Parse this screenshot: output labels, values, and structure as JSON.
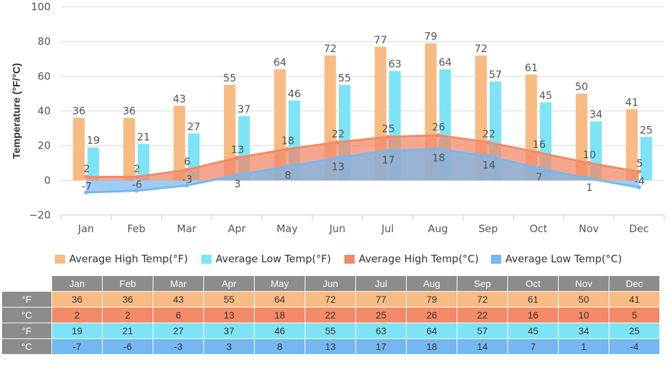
{
  "chart_data": {
    "type": "bar",
    "categories": [
      "Jan",
      "Feb",
      "Mar",
      "Apr",
      "May",
      "Jun",
      "Jul",
      "Aug",
      "Sep",
      "Oct",
      "Nov",
      "Dec"
    ],
    "ylabel": "Temperature (°F/°C)",
    "ylim": [
      -20,
      100
    ],
    "yticks": [
      -20,
      0,
      20,
      40,
      60,
      80,
      100
    ],
    "grid": true,
    "legend_position": "bottom",
    "series": [
      {
        "name": "Average High Temp(°F)",
        "kind": "bar",
        "color": "#f7bb83",
        "values": [
          36,
          36,
          43,
          55,
          64,
          72,
          77,
          79,
          72,
          61,
          50,
          41
        ]
      },
      {
        "name": "Average Low Temp(°F)",
        "kind": "bar",
        "color": "#7de4f5",
        "values": [
          19,
          21,
          27,
          37,
          46,
          55,
          63,
          64,
          57,
          45,
          34,
          25
        ]
      },
      {
        "name": "Average High Temp(°C)",
        "kind": "area",
        "color": "#f28a68",
        "values": [
          2,
          2,
          6,
          13,
          18,
          22,
          25,
          26,
          22,
          16,
          10,
          5
        ]
      },
      {
        "name": "Average Low Temp(°C)",
        "kind": "area",
        "color": "#73b8f0",
        "values": [
          -7,
          -6,
          -3,
          3,
          8,
          13,
          17,
          18,
          14,
          7,
          1,
          -4
        ]
      }
    ]
  },
  "table": {
    "header": [
      "Jan",
      "Feb",
      "Mar",
      "Apr",
      "May",
      "Jun",
      "Jul",
      "Aug",
      "Sep",
      "Oct",
      "Nov",
      "Dec"
    ],
    "rows": [
      {
        "unit": "°F",
        "cls": "row-hf",
        "values": [
          36,
          36,
          43,
          55,
          64,
          72,
          77,
          79,
          72,
          61,
          50,
          41
        ]
      },
      {
        "unit": "°C",
        "cls": "row-hc",
        "values": [
          2,
          2,
          6,
          13,
          18,
          22,
          25,
          26,
          22,
          16,
          10,
          5
        ]
      },
      {
        "unit": "°F",
        "cls": "row-lf",
        "values": [
          19,
          21,
          27,
          37,
          46,
          55,
          63,
          64,
          57,
          45,
          34,
          25
        ]
      },
      {
        "unit": "°C",
        "cls": "row-lc",
        "values": [
          -7,
          -6,
          -3,
          3,
          8,
          13,
          17,
          18,
          14,
          7,
          1,
          -4
        ]
      }
    ]
  }
}
